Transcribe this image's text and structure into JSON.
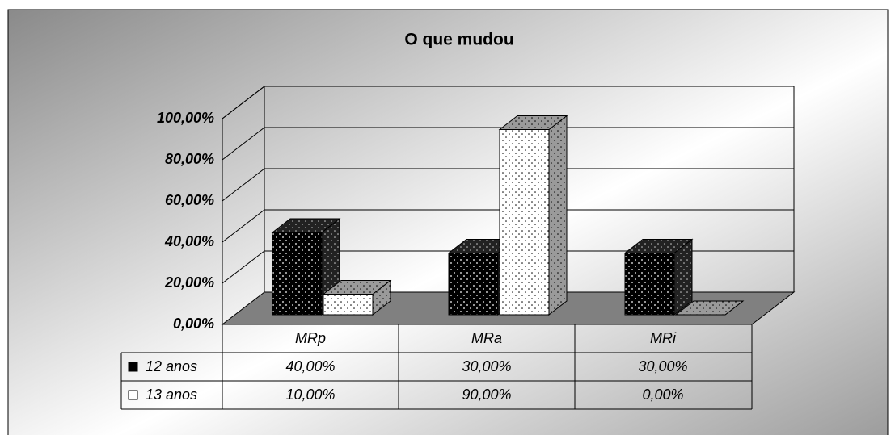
{
  "chart_data": {
    "type": "bar3d",
    "title": "O que mudou",
    "categories": [
      "MRp",
      "MRa",
      "MRi"
    ],
    "series": [
      {
        "name": "12 anos",
        "color": "#000000",
        "values": [
          40,
          30,
          30
        ],
        "value_labels": [
          "40,00%",
          "30,00%",
          "30,00%"
        ]
      },
      {
        "name": "13 anos",
        "color": "#ffffff",
        "values": [
          10,
          90,
          0
        ],
        "value_labels": [
          "10,00%",
          "90,00%",
          "0,00%"
        ]
      }
    ],
    "ylim": [
      0,
      100
    ],
    "yticks": [
      {
        "value": 0,
        "label": "0,00%"
      },
      {
        "value": 20,
        "label": "20,00%"
      },
      {
        "value": 40,
        "label": "40,00%"
      },
      {
        "value": 60,
        "label": "60,00%"
      },
      {
        "value": 80,
        "label": "80,00%"
      },
      {
        "value": 100,
        "label": "100,00%"
      }
    ],
    "grid": true
  }
}
